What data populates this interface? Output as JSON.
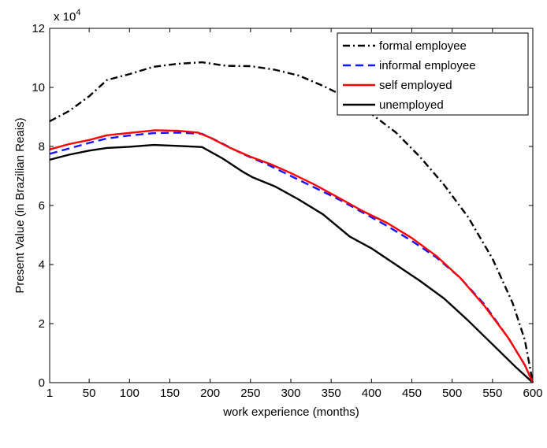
{
  "chart_data": {
    "type": "line",
    "xlabel": "work experience (months)",
    "ylabel": "Present Value (in Brazilian Reais)",
    "exponent_label": "x 10",
    "exponent_power": "4",
    "xlim": [
      1,
      600
    ],
    "ylim": [
      0,
      120000
    ],
    "xticks": [
      1,
      50,
      100,
      150,
      200,
      250,
      300,
      350,
      400,
      450,
      500,
      550,
      600
    ],
    "yticks": [
      0,
      20000,
      40000,
      60000,
      80000,
      100000,
      120000
    ],
    "ytick_labels": [
      "0",
      "2",
      "4",
      "6",
      "8",
      "10",
      "12"
    ],
    "legend_position": "top-right",
    "grid": false,
    "series": [
      {
        "name": "formal employee",
        "color": "#000000",
        "style": "dashdot",
        "x": [
          1,
          25,
          50,
          72,
          100,
          130,
          160,
          190,
          220,
          250,
          280,
          310,
          340,
          370,
          400,
          430,
          460,
          490,
          520,
          550,
          575,
          590,
          600
        ],
        "y": [
          88500,
          92000,
          97000,
          102500,
          104500,
          107000,
          108000,
          108500,
          107300,
          107200,
          106000,
          104000,
          100500,
          96500,
          91000,
          84800,
          76500,
          67000,
          56000,
          42000,
          27000,
          14500,
          0
        ]
      },
      {
        "name": "informal employee",
        "color": "#1515ff",
        "style": "dashed",
        "x": [
          1,
          25,
          50,
          72,
          100,
          130,
          160,
          190,
          210,
          240,
          270,
          300,
          330,
          360,
          390,
          420,
          450,
          480,
          510,
          540,
          570,
          590,
          600
        ],
        "y": [
          77500,
          79300,
          81200,
          82700,
          83700,
          84500,
          84700,
          84300,
          81700,
          77500,
          74000,
          70000,
          66000,
          62000,
          57500,
          53000,
          48000,
          42500,
          35500,
          26500,
          15000,
          6000,
          0
        ]
      },
      {
        "name": "self employed",
        "color": "#ff0000",
        "style": "solid",
        "x": [
          1,
          25,
          50,
          72,
          100,
          132,
          160,
          185,
          200,
          225,
          250,
          275,
          300,
          330,
          360,
          390,
          420,
          450,
          480,
          510,
          540,
          570,
          590,
          600
        ],
        "y": [
          79000,
          80800,
          82200,
          83800,
          84600,
          85500,
          85300,
          84700,
          83000,
          79500,
          76500,
          74000,
          71000,
          67000,
          62500,
          58000,
          54000,
          49000,
          43000,
          35500,
          26000,
          15000,
          6000,
          0
        ]
      },
      {
        "name": "unemployed",
        "color": "#000000",
        "style": "solid",
        "x": [
          1,
          25,
          50,
          72,
          100,
          130,
          160,
          190,
          215,
          240,
          253,
          280,
          310,
          340,
          373,
          400,
          430,
          460,
          490,
          520,
          550,
          580,
          600
        ],
        "y": [
          75500,
          77200,
          78600,
          79500,
          79900,
          80500,
          80200,
          79800,
          76000,
          71500,
          69500,
          66500,
          62000,
          57000,
          49500,
          45500,
          40000,
          34500,
          28500,
          21000,
          13000,
          5000,
          0
        ]
      }
    ]
  }
}
